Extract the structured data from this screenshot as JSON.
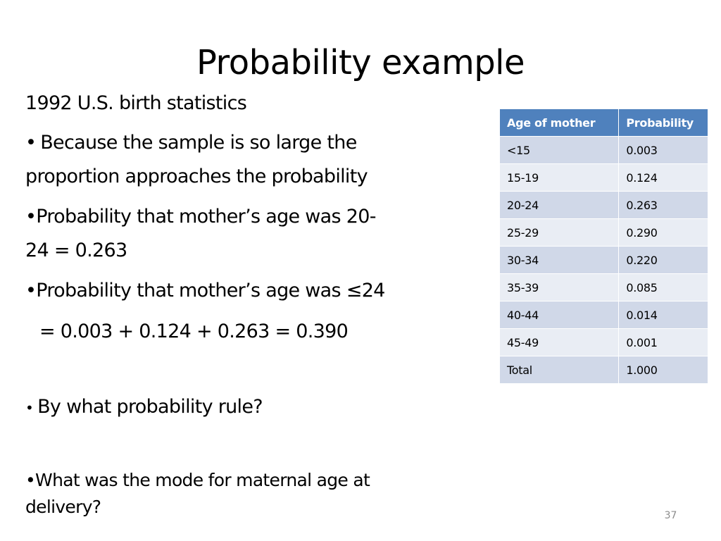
{
  "slide": {
    "title": "Probability example",
    "page_number": "37"
  },
  "content": {
    "line1": "1992 U.S. birth statistics",
    "bullet_char": "•",
    "b1_line1": "Because the sample is so large the",
    "b1_line2": "proportion approaches the probability",
    "b2_line1": "Probability that mother’s age was 20-",
    "b2_line2": "24 = 0.263",
    "b3_line1": "Probability that mother’s age was ≤24",
    "b3_line2": "= 0.003 + 0.124 + 0.263 = 0.390",
    "b4": "By what probability rule?",
    "b5_line1": "What was the mode for maternal age at",
    "b5_line2": "delivery?"
  },
  "table": {
    "headers": [
      "Age of mother",
      "Probability"
    ],
    "rows": [
      [
        "<15",
        "0.003"
      ],
      [
        "15-19",
        "0.124"
      ],
      [
        "20-24",
        "0.263"
      ],
      [
        "25-29",
        "0.290"
      ],
      [
        "30-34",
        "0.220"
      ],
      [
        "35-39",
        "0.085"
      ],
      [
        "40-44",
        "0.014"
      ],
      [
        "45-49",
        "0.001"
      ],
      [
        "Total",
        "1.000"
      ]
    ]
  }
}
